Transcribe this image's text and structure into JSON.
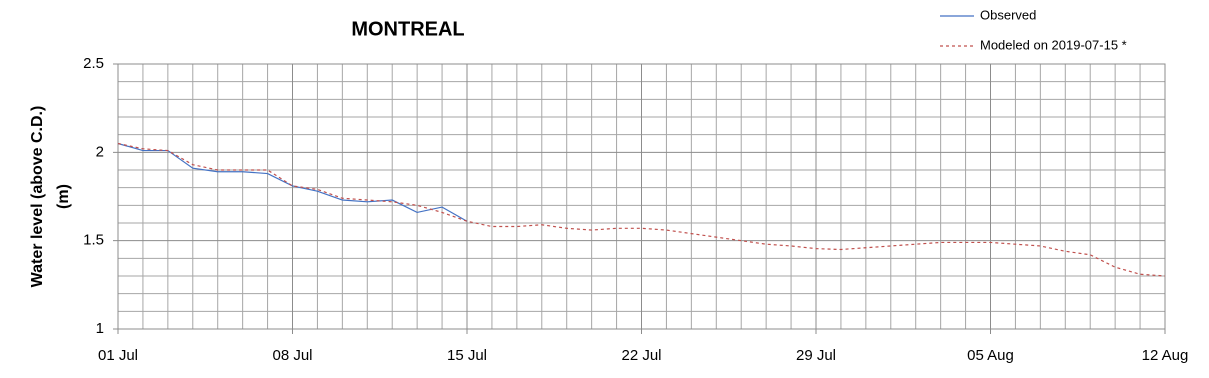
{
  "chart_data": {
    "type": "line",
    "title": "MONTREAL",
    "ylabel": [
      "Water level (above C.D.)",
      "(m)"
    ],
    "x": [
      "01 Jul",
      "02 Jul",
      "03 Jul",
      "04 Jul",
      "05 Jul",
      "06 Jul",
      "07 Jul",
      "08 Jul",
      "09 Jul",
      "10 Jul",
      "11 Jul",
      "12 Jul",
      "13 Jul",
      "14 Jul",
      "15 Jul",
      "16 Jul",
      "17 Jul",
      "18 Jul",
      "19 Jul",
      "20 Jul",
      "21 Jul",
      "22 Jul",
      "23 Jul",
      "24 Jul",
      "25 Jul",
      "26 Jul",
      "27 Jul",
      "28 Jul",
      "29 Jul",
      "30 Jul",
      "31 Jul",
      "01 Aug",
      "02 Aug",
      "03 Aug",
      "04 Aug",
      "05 Aug",
      "06 Aug",
      "07 Aug",
      "08 Aug",
      "09 Aug",
      "10 Aug",
      "11 Aug",
      "12 Aug"
    ],
    "xticks": [
      "01 Jul",
      "08 Jul",
      "15 Jul",
      "22 Jul",
      "29 Jul",
      "05 Aug",
      "12 Aug"
    ],
    "series": [
      {
        "name": "Observed",
        "color": "#4472c4",
        "dash": false,
        "values": [
          2.05,
          2.01,
          2.01,
          1.91,
          1.89,
          1.89,
          1.88,
          1.81,
          1.78,
          1.73,
          1.72,
          1.73,
          1.66,
          1.69,
          1.61,
          null,
          null,
          null,
          null,
          null,
          null,
          null,
          null,
          null,
          null,
          null,
          null,
          null,
          null,
          null,
          null,
          null,
          null,
          null,
          null,
          null,
          null,
          null,
          null,
          null,
          null,
          null,
          null
        ]
      },
      {
        "name": "Modeled on 2019-07-15 *",
        "color": "#c0504d",
        "dash": true,
        "values": [
          2.05,
          2.02,
          2.01,
          1.93,
          1.9,
          1.9,
          1.9,
          1.81,
          1.79,
          1.74,
          1.73,
          1.72,
          1.7,
          1.66,
          1.61,
          1.58,
          1.58,
          1.59,
          1.57,
          1.56,
          1.57,
          1.57,
          1.56,
          1.54,
          1.52,
          1.5,
          1.48,
          1.47,
          1.455,
          1.45,
          1.46,
          1.47,
          1.48,
          1.49,
          1.49,
          1.49,
          1.48,
          1.47,
          1.44,
          1.42,
          1.35,
          1.31,
          1.3
        ]
      }
    ],
    "ylim": [
      1,
      2.5
    ],
    "yticks": [
      1,
      1.5,
      2,
      2.5
    ],
    "yminorticks": [
      1.1,
      1.2,
      1.3,
      1.4,
      1.6,
      1.7,
      1.8,
      1.9,
      2.1,
      2.2,
      2.3,
      2.4
    ],
    "grid": true,
    "legend": "top-right"
  }
}
